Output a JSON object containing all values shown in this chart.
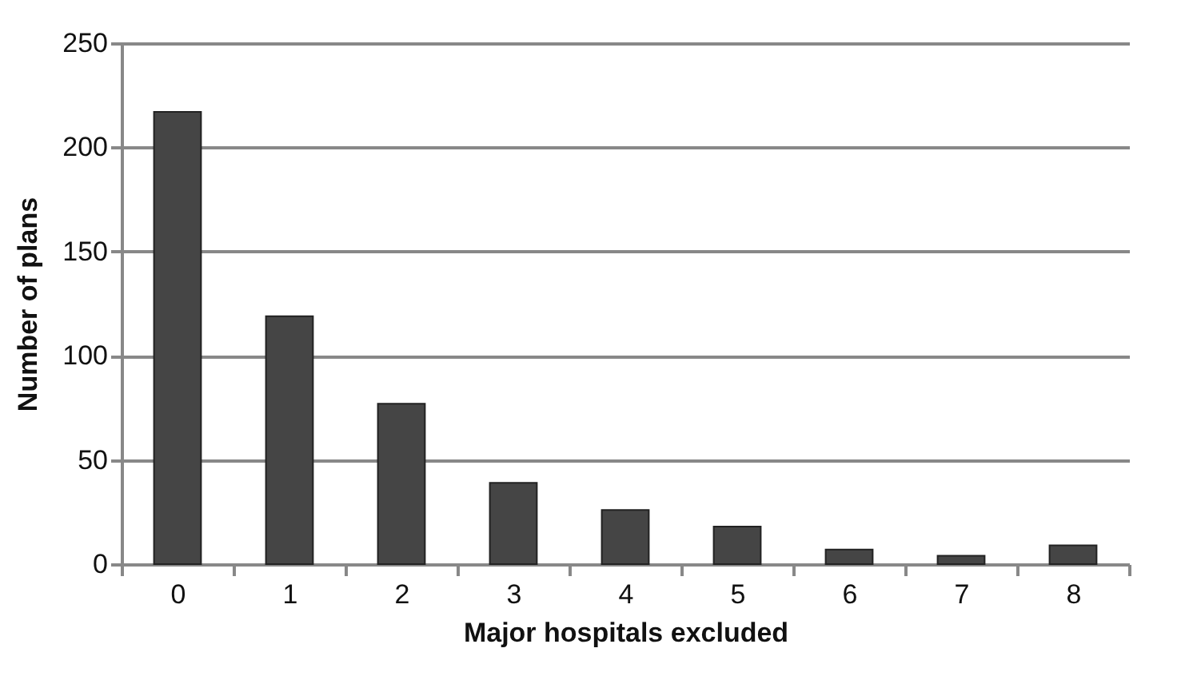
{
  "chart_data": {
    "type": "bar",
    "xlabel": "Major hospitals excluded",
    "ylabel": "Number of plans",
    "categories": [
      "0",
      "1",
      "2",
      "3",
      "4",
      "5",
      "6",
      "7",
      "8"
    ],
    "values": [
      217,
      119,
      77,
      39,
      26,
      18,
      7,
      4,
      9
    ],
    "color": "#454545",
    "ylim": [
      0,
      250
    ],
    "yticks": [
      0,
      50,
      100,
      150,
      200,
      250
    ],
    "grid": "y"
  }
}
